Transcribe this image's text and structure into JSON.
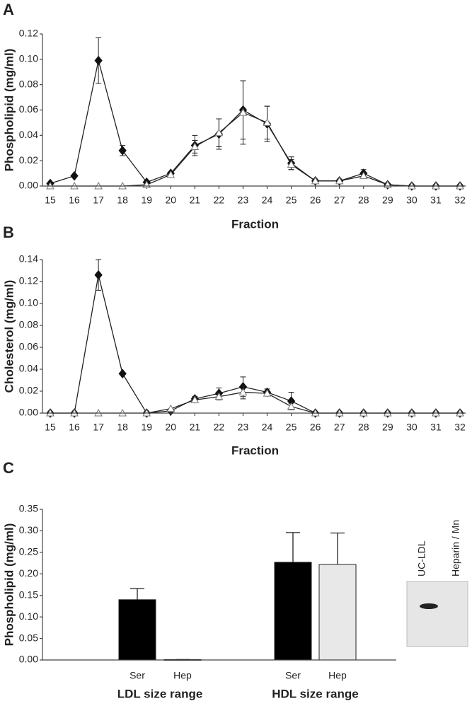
{
  "chart_data": [
    {
      "type": "line",
      "panel_label": "A",
      "ylabel": "Phospholipid (mg/ml)",
      "xlabel": "Fraction",
      "categories": [
        "15",
        "16",
        "17",
        "18",
        "19",
        "20",
        "21",
        "22",
        "23",
        "24",
        "25",
        "26",
        "27",
        "28",
        "29",
        "30",
        "31",
        "32"
      ],
      "ylim": [
        0,
        0.12
      ],
      "yticks": [
        {
          "value": 0,
          "label": "0.00"
        },
        0.02,
        0.04,
        0.06,
        0.08,
        {
          "value": 0.1,
          "label": "0.10"
        },
        0.12
      ],
      "series": [
        {
          "marker": "diamond",
          "color": "#111111",
          "values": [
            0.002,
            0.008,
            0.099,
            0.028,
            0.003,
            0.01,
            0.032,
            0.041,
            0.06,
            0.049,
            0.018,
            0.004,
            0.004,
            0.01,
            0.001,
            0,
            0,
            0
          ],
          "errors": [
            0,
            0,
            0.018,
            0.004,
            0,
            0.001,
            0.008,
            0.012,
            0.023,
            0.014,
            0.005,
            0,
            0,
            0.003,
            0,
            0,
            0,
            0
          ]
        },
        {
          "marker": "triangle",
          "color": "#ffffff",
          "values": [
            0,
            0,
            0,
            0,
            0.001,
            0.009,
            0.031,
            0.042,
            0.058,
            0.05,
            0.017,
            0.004,
            0.004,
            0.008,
            0.001,
            0,
            0,
            0
          ],
          "errors": [
            0,
            0,
            0,
            0,
            0,
            0,
            0.005,
            0.011,
            0.025,
            0.013,
            0.004,
            0,
            0,
            0.002,
            0,
            0,
            0,
            0
          ]
        }
      ]
    },
    {
      "type": "line",
      "panel_label": "B",
      "ylabel": "Cholesterol (mg/ml)",
      "xlabel": "Fraction",
      "categories": [
        "15",
        "16",
        "17",
        "18",
        "19",
        "20",
        "21",
        "22",
        "23",
        "24",
        "25",
        "26",
        "27",
        "28",
        "29",
        "30",
        "31",
        "32"
      ],
      "ylim": [
        0,
        0.14
      ],
      "yticks": [
        {
          "value": 0,
          "label": "0.00"
        },
        0.02,
        0.04,
        0.06,
        0.08,
        {
          "value": 0.1,
          "label": "0.10"
        },
        0.12,
        0.14
      ],
      "series": [
        {
          "marker": "diamond",
          "color": "#111111",
          "values": [
            0,
            0,
            0.126,
            0.036,
            0,
            0.002,
            0.013,
            0.018,
            0.024,
            0.019,
            0.011,
            0,
            0,
            0,
            0,
            0,
            0,
            0
          ],
          "errors": [
            0,
            0,
            0.014,
            0,
            0,
            0,
            0.002,
            0.005,
            0.009,
            0.003,
            0.008,
            0,
            0,
            0,
            0,
            0,
            0,
            0
          ]
        },
        {
          "marker": "triangle",
          "color": "#ffffff",
          "values": [
            0,
            0,
            0,
            0,
            0,
            0.004,
            0.012,
            0.015,
            0.019,
            0.018,
            0.006,
            0,
            0,
            0,
            0,
            0,
            0,
            0
          ],
          "errors": [
            0,
            0,
            0,
            0,
            0,
            0,
            0,
            0.003,
            0.006,
            0.002,
            0.003,
            0,
            0,
            0,
            0,
            0,
            0,
            0
          ]
        }
      ]
    },
    {
      "type": "bar",
      "panel_label": "C",
      "ylabel": "Phospholipid (mg/ml)",
      "categories": [
        "Ser",
        "Hep",
        "Ser",
        "Hep"
      ],
      "groups": [
        "LDL size range",
        "HDL size range"
      ],
      "values": [
        0.14,
        0.001,
        0.227,
        0.222
      ],
      "errors": [
        0.026,
        0,
        0.069,
        0.073
      ],
      "colors": [
        "#000000",
        "#000000",
        "#000000",
        "#e8e8e8"
      ],
      "ylim": [
        0,
        0.35
      ],
      "yticks": [
        {
          "value": 0,
          "label": "0.00"
        },
        0.05,
        {
          "value": 0.1,
          "label": "0.10"
        },
        0.15,
        {
          "value": 0.2,
          "label": "0.20"
        },
        0.25,
        {
          "value": 0.3,
          "label": "0.30"
        },
        0.35
      ]
    }
  ],
  "blot": {
    "lanes": [
      "UC-LDL",
      "Heparin / Mn"
    ]
  }
}
